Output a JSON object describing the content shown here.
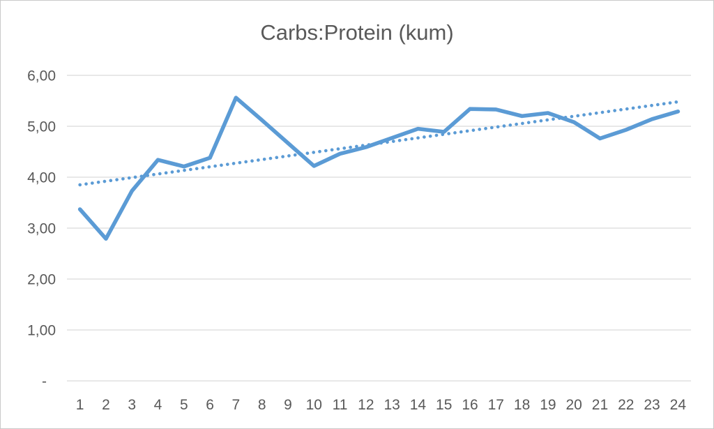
{
  "chart": {
    "title": "Carbs:Protein (kum)"
  },
  "chart_data": {
    "type": "line",
    "title": "Carbs:Protein (kum)",
    "x": [
      1,
      2,
      3,
      4,
      5,
      6,
      7,
      8,
      9,
      10,
      11,
      12,
      13,
      14,
      15,
      16,
      17,
      18,
      19,
      20,
      21,
      22,
      23,
      24
    ],
    "series": [
      {
        "name": "Carbs:Protein (kum)",
        "line_style": "solid",
        "values": [
          3.37,
          2.79,
          3.73,
          4.34,
          4.21,
          4.38,
          5.56,
          5.12,
          4.67,
          4.22,
          4.46,
          4.59,
          4.77,
          4.95,
          4.89,
          5.34,
          5.33,
          5.2,
          5.26,
          5.08,
          4.76,
          4.93,
          5.14,
          5.29
        ]
      },
      {
        "name": "linear-trendline",
        "line_style": "dotted",
        "trend_endpoints": [
          3.85,
          5.48
        ]
      }
    ],
    "x_axis": {
      "tick_labels": [
        "1",
        "2",
        "3",
        "4",
        "5",
        "6",
        "7",
        "8",
        "9",
        "10",
        "11",
        "12",
        "13",
        "14",
        "15",
        "16",
        "17",
        "18",
        "19",
        "20",
        "21",
        "22",
        "23",
        "24"
      ]
    },
    "y_axis": {
      "tick_labels": [
        "6,00",
        "5,00",
        "4,00",
        "3,00",
        "2,00",
        "1,00",
        "-"
      ],
      "tick_values": [
        6,
        5,
        4,
        3,
        2,
        1,
        0
      ],
      "range": [
        0,
        6
      ]
    },
    "legend": "none",
    "grid": "horizontal",
    "colors": {
      "series": "#5B9BD5",
      "trendline": "#5B9BD5",
      "grid": "#D9D9D9",
      "text": "#595959",
      "title": "#595959",
      "background": "#FFFFFF",
      "border": "#C9C9C9"
    }
  }
}
